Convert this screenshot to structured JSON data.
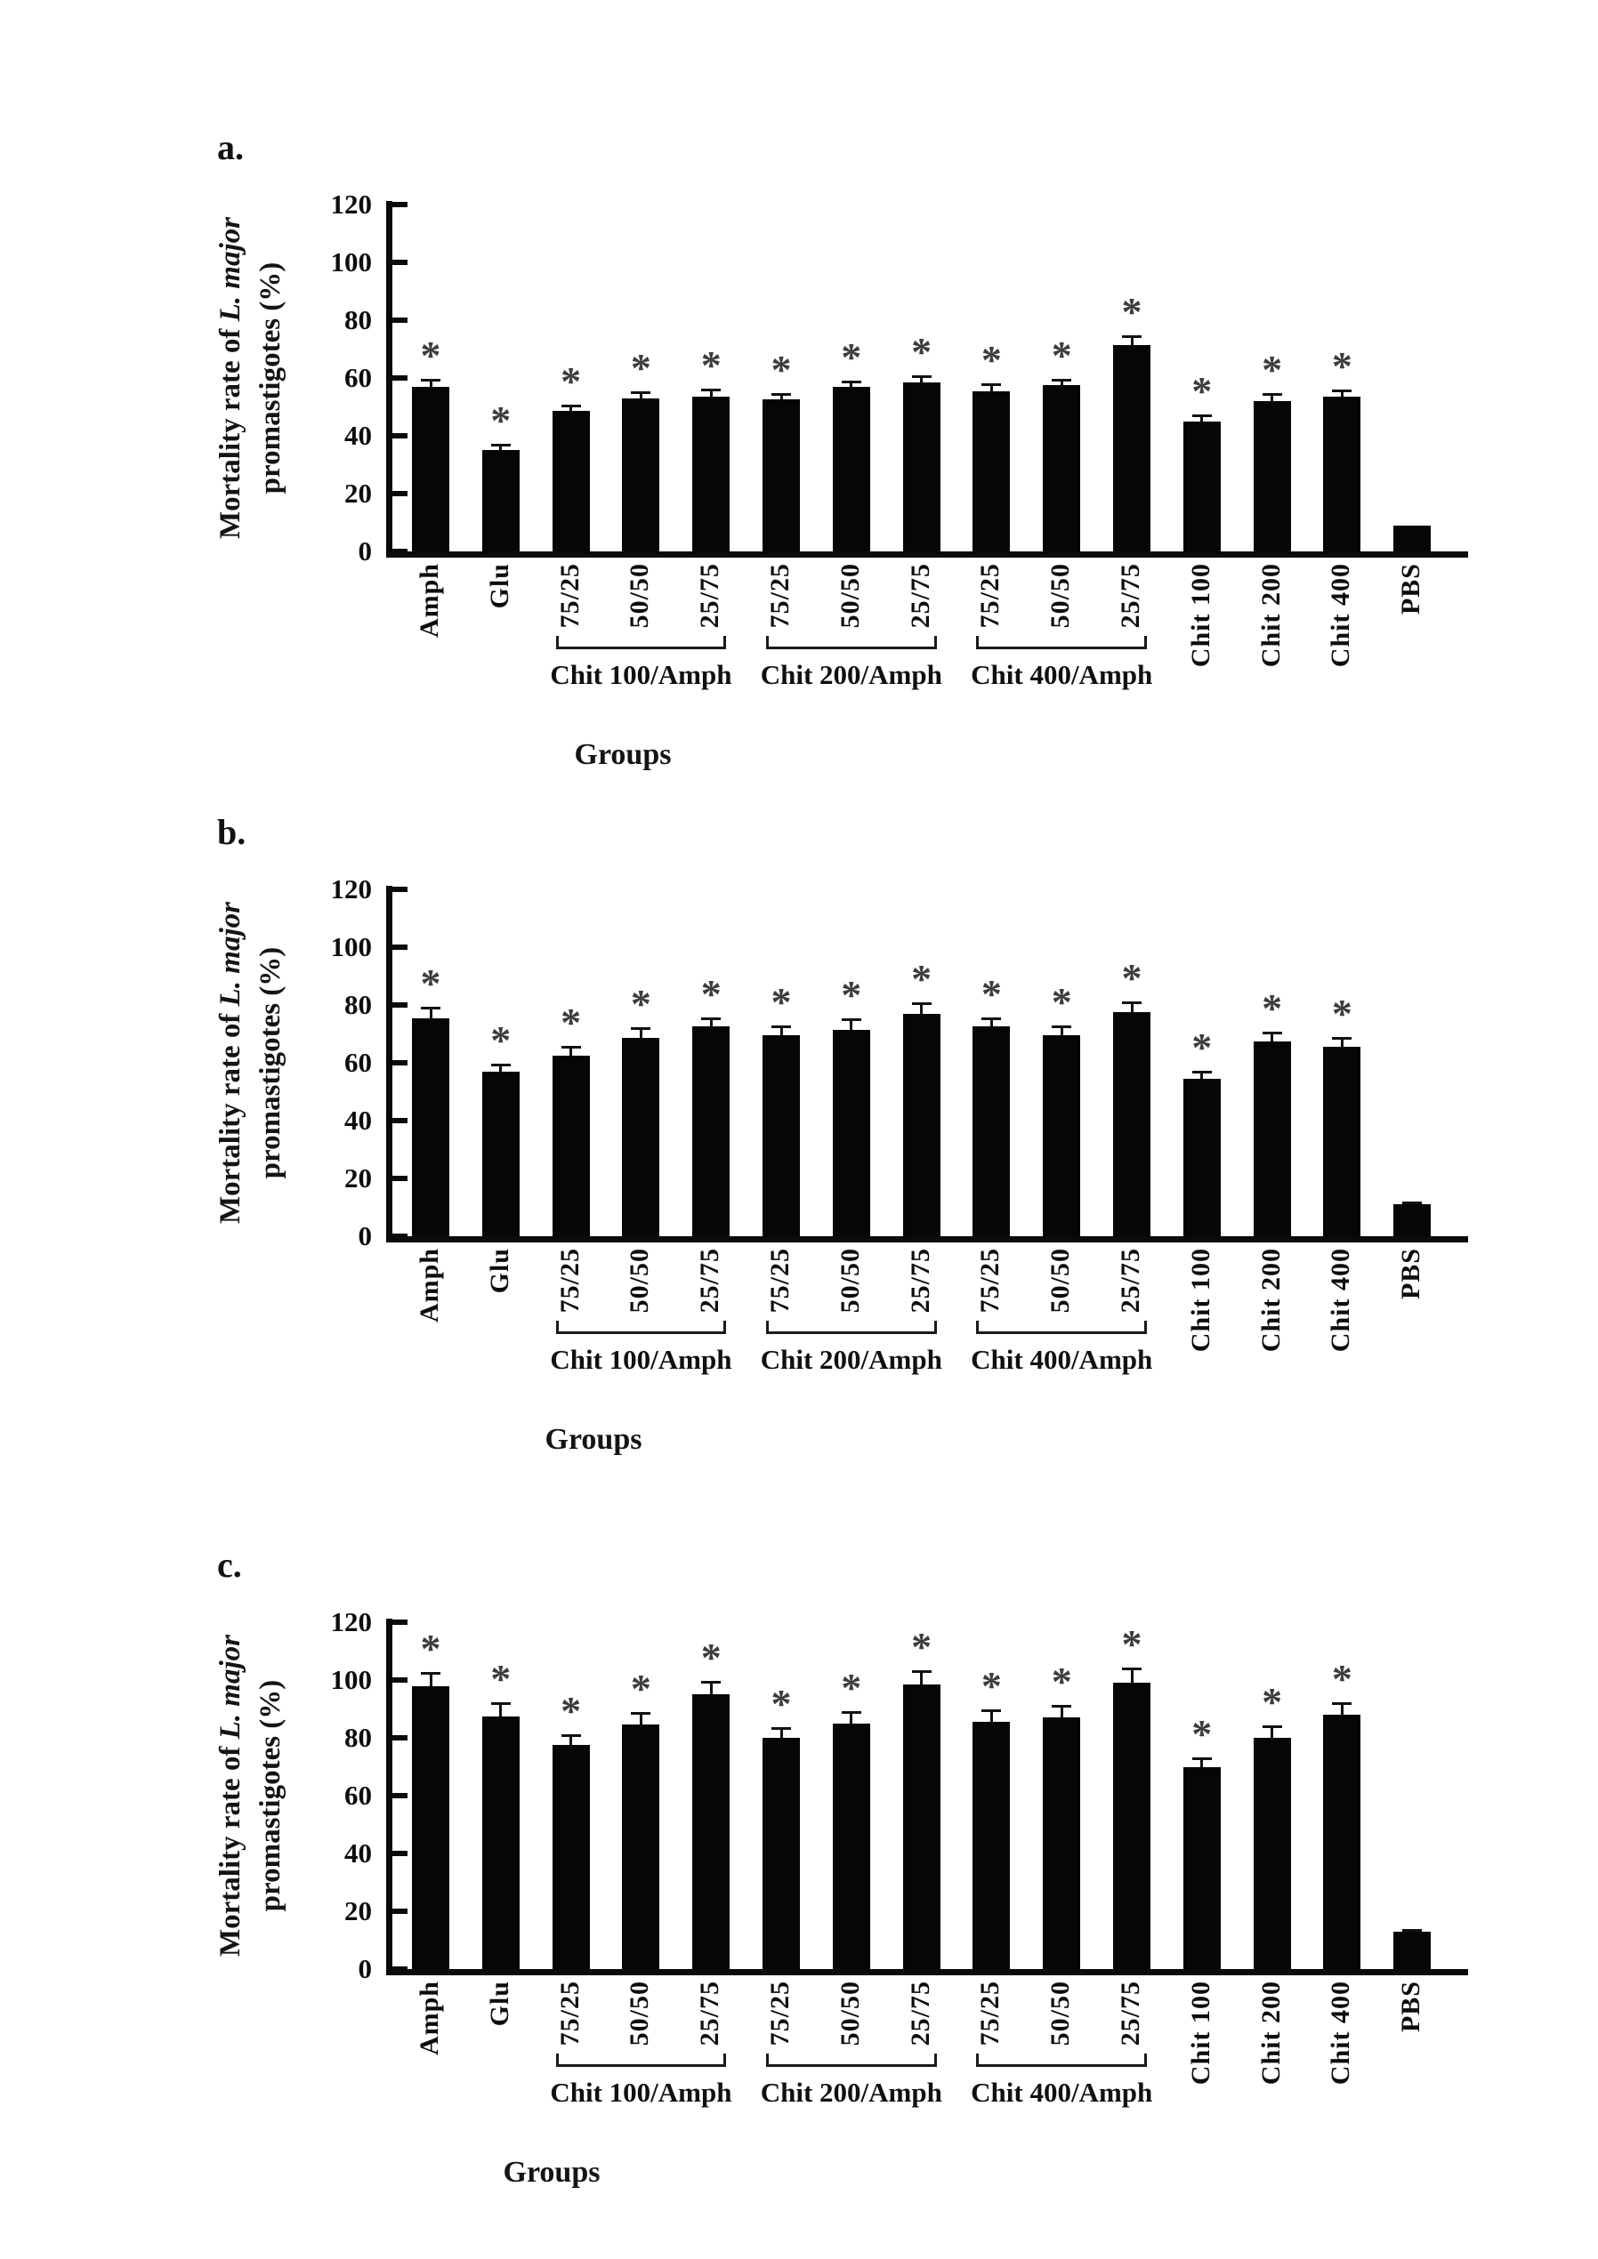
{
  "figure_title": "Mortality rate bar charts",
  "sig_marker": "*",
  "colors": {
    "bar": "#060606",
    "axis": "#0b0b0b",
    "asterisk": "#3d3d3d",
    "background": "#ffffff"
  },
  "chart_data": [
    {
      "type": "bar",
      "panel_letter": "a.",
      "ylabel_prefix": "Mortality rate of ",
      "ylabel_italic": "L. major",
      "ylabel_line2": "promastigotes (%)",
      "xlabel": "Groups",
      "ylim": [
        0,
        120
      ],
      "yticks": [
        0,
        20,
        40,
        60,
        80,
        100,
        120
      ],
      "grid": false,
      "legend": "none",
      "categories": [
        "Amph",
        "Glu",
        "75/25",
        "50/50",
        "25/75",
        "75/25",
        "50/50",
        "25/75",
        "75/25",
        "50/50",
        "25/75",
        "Chit 100",
        "Chit 200",
        "Chit 400",
        "PBS"
      ],
      "values": [
        57,
        35,
        48.5,
        53,
        53.5,
        52.5,
        57,
        58.5,
        55.5,
        57.5,
        71.5,
        45,
        52,
        53.5,
        9
      ],
      "errors": [
        2.5,
        1.8,
        2,
        2.2,
        2.5,
        2,
        1.8,
        2,
        2.2,
        2,
        3,
        2.2,
        2.5,
        2.3,
        0
      ],
      "significant": [
        true,
        true,
        true,
        true,
        true,
        true,
        true,
        true,
        true,
        true,
        true,
        true,
        true,
        true,
        false
      ],
      "group_brackets": [
        {
          "label": "Chit 100/Amph",
          "from": 2,
          "to": 4
        },
        {
          "label": "Chit 200/Amph",
          "from": 5,
          "to": 7
        },
        {
          "label": "Chit 400/Amph",
          "from": 8,
          "to": 10
        }
      ],
      "xlabel_x": 700
    },
    {
      "type": "bar",
      "panel_letter": "b.",
      "ylabel_prefix": "Mortality rate of ",
      "ylabel_italic": "L. major",
      "ylabel_line2": "promastigotes (%)",
      "xlabel": "Groups",
      "ylim": [
        0,
        120
      ],
      "yticks": [
        0,
        20,
        40,
        60,
        80,
        100,
        120
      ],
      "grid": false,
      "legend": "none",
      "categories": [
        "Amph",
        "Glu",
        "75/25",
        "50/50",
        "25/75",
        "75/25",
        "50/50",
        "25/75",
        "75/25",
        "50/50",
        "25/75",
        "Chit 100",
        "Chit 200",
        "Chit 400",
        "PBS"
      ],
      "values": [
        75.5,
        57,
        62.5,
        68.5,
        72.5,
        69.5,
        71.5,
        77,
        72.5,
        69.5,
        77.5,
        54.5,
        67.5,
        65.5,
        11
      ],
      "errors": [
        3.5,
        2.5,
        3,
        3.5,
        3,
        3,
        3.5,
        3.5,
        3,
        3,
        3.5,
        2.5,
        3,
        3,
        0.8
      ],
      "significant": [
        true,
        true,
        true,
        true,
        true,
        true,
        true,
        true,
        true,
        true,
        true,
        true,
        true,
        true,
        false
      ],
      "group_brackets": [
        {
          "label": "Chit 100/Amph",
          "from": 2,
          "to": 4
        },
        {
          "label": "Chit 200/Amph",
          "from": 5,
          "to": 7
        },
        {
          "label": "Chit 400/Amph",
          "from": 8,
          "to": 10
        }
      ],
      "xlabel_x": 667
    },
    {
      "type": "bar",
      "panel_letter": "c.",
      "ylabel_prefix": "Mortality rate of ",
      "ylabel_italic": "L. major",
      "ylabel_line2": "promastigotes (%)",
      "xlabel": "Groups",
      "ylim": [
        0,
        120
      ],
      "yticks": [
        0,
        20,
        40,
        60,
        80,
        100,
        120
      ],
      "grid": false,
      "legend": "none",
      "categories": [
        "Amph",
        "Glu",
        "75/25",
        "50/50",
        "25/75",
        "75/25",
        "50/50",
        "25/75",
        "75/25",
        "50/50",
        "25/75",
        "Chit 100",
        "Chit 200",
        "Chit 400",
        "PBS"
      ],
      "values": [
        98,
        87.5,
        77.5,
        84.5,
        95,
        80,
        85,
        98.5,
        85.5,
        87,
        99,
        70,
        80,
        88,
        13
      ],
      "errors": [
        4.5,
        4.5,
        3.5,
        4,
        4.5,
        3.5,
        4,
        4.5,
        4,
        4,
        5,
        3,
        4,
        4,
        0.5
      ],
      "significant": [
        true,
        true,
        true,
        true,
        true,
        true,
        true,
        true,
        true,
        true,
        true,
        true,
        true,
        true,
        false
      ],
      "group_brackets": [
        {
          "label": "Chit 100/Amph",
          "from": 2,
          "to": 4
        },
        {
          "label": "Chit 200/Amph",
          "from": 5,
          "to": 7
        },
        {
          "label": "Chit 400/Amph",
          "from": 8,
          "to": 10
        }
      ],
      "xlabel_x": 620
    }
  ]
}
